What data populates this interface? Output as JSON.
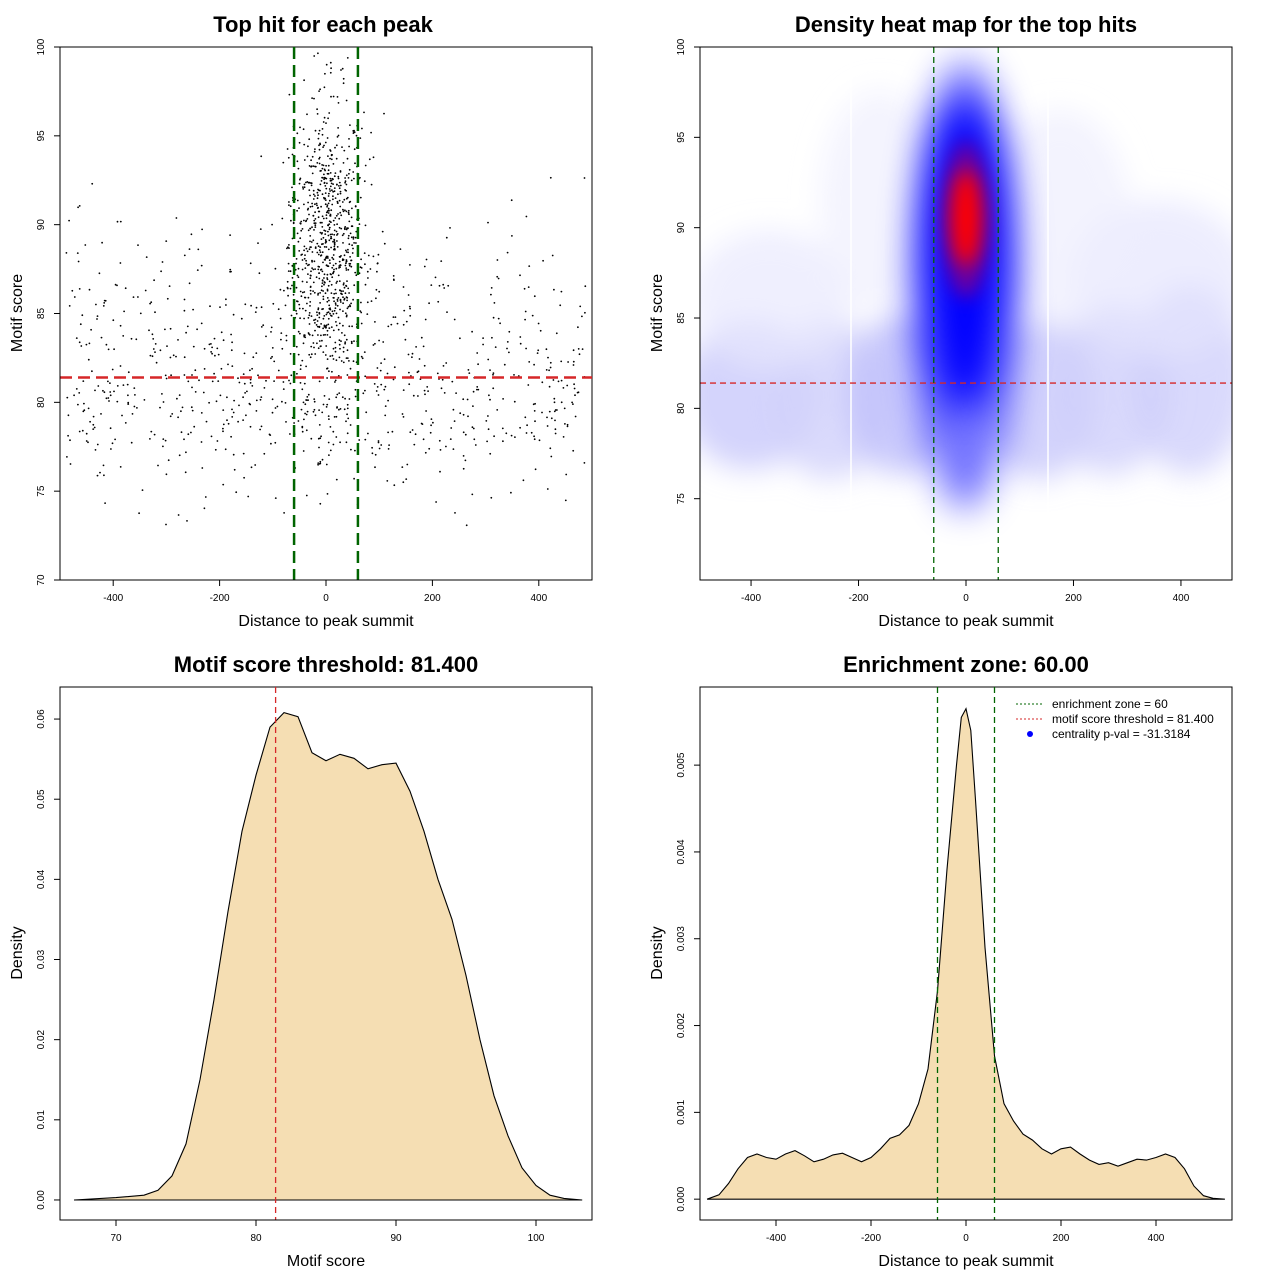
{
  "colors": {
    "threshold_red": "#d62728",
    "zone_green": "#006400",
    "fill_wheat": "#f5deb3",
    "heat_blue": "#0000ff",
    "heat_red": "#ff0000",
    "centrality_blue": "#0000ff"
  },
  "chart_data": [
    {
      "type": "scatter",
      "title": "Top hit for each peak",
      "xlabel": "Distance to peak summit",
      "ylabel": "Motif score",
      "xlim": [
        -500,
        500
      ],
      "ylim": [
        70,
        100
      ],
      "xticks": [
        -400,
        -200,
        0,
        200,
        400
      ],
      "yticks": [
        70,
        75,
        80,
        85,
        90,
        95,
        100
      ],
      "threshold": 81.4,
      "zone": [
        -60,
        60
      ],
      "point_groups": [
        {
          "name": "central",
          "n": 850,
          "x_mean": 0,
          "x_sd": 35,
          "y_mean": 89,
          "y_sd": 4.2
        },
        {
          "name": "background-high",
          "n": 300,
          "x_min": -490,
          "x_max": 490,
          "y_mean": 85,
          "y_sd": 3.2
        },
        {
          "name": "background-low",
          "n": 500,
          "x_min": -490,
          "x_max": 490,
          "y_mean": 79.5,
          "y_sd": 2.4
        }
      ]
    },
    {
      "type": "heatmap",
      "title": "Density heat map for the top hits",
      "xlabel": "Distance to peak summit",
      "ylabel": "Motif score",
      "xlim": [
        -495,
        495
      ],
      "ylim": [
        70.5,
        100
      ],
      "xticks": [
        -400,
        -200,
        0,
        200,
        400
      ],
      "yticks": [
        75,
        80,
        85,
        90,
        95,
        100
      ],
      "threshold": 81.4,
      "zone": [
        -60,
        60
      ],
      "peak": {
        "x": 0,
        "y": 90.5
      },
      "colorscale": [
        "#ffffff",
        "#0000ff",
        "#ff0000"
      ]
    },
    {
      "type": "area",
      "title": "Motif score threshold: 81.400",
      "xlabel": "Motif score",
      "ylabel": "Density",
      "xlim": [
        66,
        104
      ],
      "ylim": [
        -0.0025,
        0.064
      ],
      "xticks": [
        70,
        80,
        90,
        100
      ],
      "yticks": [
        0.0,
        0.01,
        0.02,
        0.03,
        0.04,
        0.05,
        0.06
      ],
      "ytick_labels": [
        "0.00",
        "0.01",
        "0.02",
        "0.03",
        "0.04",
        "0.05",
        "0.06"
      ],
      "threshold": 81.4,
      "x": [
        67,
        70,
        72,
        73,
        74,
        75,
        76,
        77,
        78,
        79,
        80,
        81,
        82,
        83,
        84,
        85,
        86,
        87,
        88,
        89,
        90,
        91,
        92,
        93,
        94,
        95,
        96,
        97,
        98,
        99,
        100,
        101,
        102,
        103.3
      ],
      "y": [
        0,
        0.0003,
        0.0006,
        0.0012,
        0.003,
        0.007,
        0.015,
        0.025,
        0.036,
        0.046,
        0.053,
        0.059,
        0.0608,
        0.0603,
        0.0558,
        0.0548,
        0.0556,
        0.0551,
        0.0538,
        0.0543,
        0.0545,
        0.051,
        0.046,
        0.04,
        0.035,
        0.028,
        0.02,
        0.013,
        0.008,
        0.004,
        0.0018,
        0.0006,
        0.0002,
        0
      ]
    },
    {
      "type": "area",
      "title": "Enrichment zone: 60.00",
      "xlabel": "Distance to peak summit",
      "ylabel": "Density",
      "xlim": [
        -560,
        560
      ],
      "ylim": [
        -0.00024,
        0.0059
      ],
      "xticks": [
        -400,
        -200,
        0,
        200,
        400
      ],
      "yticks": [
        0.0,
        0.001,
        0.002,
        0.003,
        0.004,
        0.005
      ],
      "ytick_labels": [
        "0.000",
        "0.001",
        "0.002",
        "0.003",
        "0.004",
        "0.005"
      ],
      "zone": [
        -60,
        60
      ],
      "x": [
        -545,
        -520,
        -500,
        -480,
        -460,
        -440,
        -420,
        -400,
        -380,
        -360,
        -340,
        -320,
        -300,
        -280,
        -260,
        -240,
        -220,
        -200,
        -180,
        -160,
        -140,
        -120,
        -100,
        -80,
        -60,
        -40,
        -20,
        -10,
        0,
        10,
        20,
        40,
        60,
        80,
        100,
        120,
        140,
        160,
        180,
        200,
        220,
        240,
        260,
        280,
        300,
        320,
        340,
        360,
        380,
        400,
        420,
        440,
        460,
        480,
        500,
        520,
        545
      ],
      "y": [
        0,
        5e-05,
        0.00018,
        0.00035,
        0.00048,
        0.00052,
        0.00048,
        0.00046,
        0.00052,
        0.00056,
        0.0005,
        0.00043,
        0.00046,
        0.00051,
        0.00053,
        0.00048,
        0.00043,
        0.00048,
        0.00058,
        0.0007,
        0.00074,
        0.00085,
        0.0011,
        0.0015,
        0.0024,
        0.0038,
        0.005,
        0.00555,
        0.00565,
        0.0054,
        0.0046,
        0.0029,
        0.00165,
        0.0011,
        0.0009,
        0.00075,
        0.00068,
        0.00058,
        0.00052,
        0.00058,
        0.0006,
        0.00052,
        0.00045,
        0.0004,
        0.00042,
        0.00038,
        0.00042,
        0.00046,
        0.00045,
        0.00048,
        0.00052,
        0.00048,
        0.00035,
        0.00015,
        4e-05,
        1e-05,
        0
      ]
    }
  ],
  "legend": {
    "zone": "enrichment zone = 60",
    "threshold": "motif score threshold = 81.400",
    "centrality": "centrality p-val = -31.3184"
  }
}
